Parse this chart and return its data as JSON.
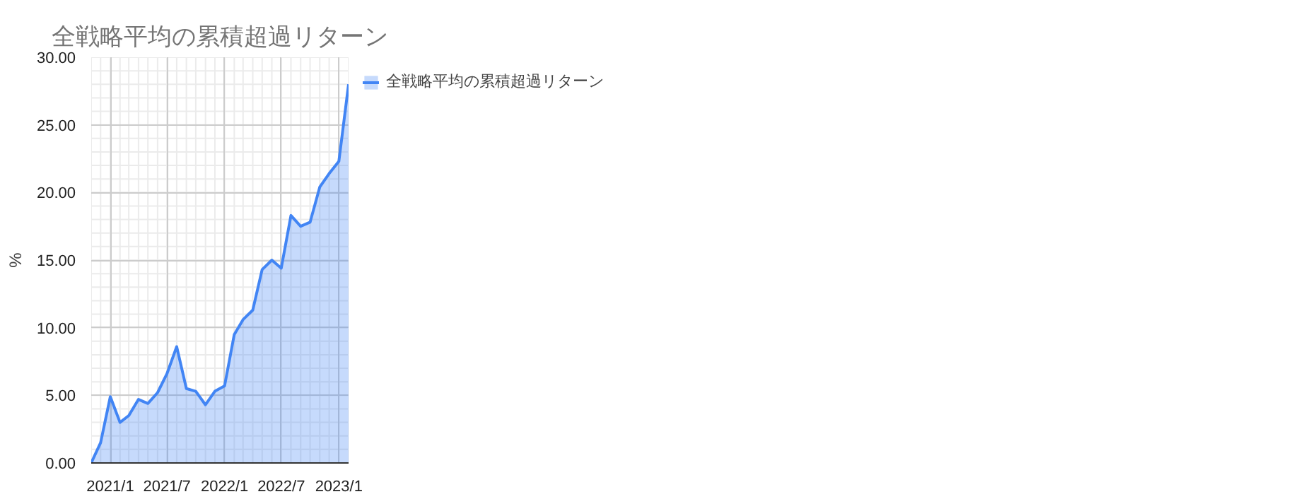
{
  "chart_data": {
    "type": "area",
    "title": "全戦略平均の累積超過リターン",
    "ylabel": "%",
    "x": [
      "2020-11",
      "2020-12",
      "2021-01",
      "2021-02",
      "2021-03",
      "2021-04",
      "2021-05",
      "2021-06",
      "2021-07",
      "2021-08",
      "2021-09",
      "2021-10",
      "2021-11",
      "2021-12",
      "2022-01",
      "2022-02",
      "2022-03",
      "2022-04",
      "2022-05",
      "2022-06",
      "2022-07",
      "2022-08",
      "2022-09",
      "2022-10",
      "2022-11",
      "2022-12",
      "2023-01",
      "2023-02"
    ],
    "series": [
      {
        "name": "全戦略平均の累積超過リターン",
        "color": "#4285f4",
        "values": [
          0,
          1.5,
          4.9,
          3.0,
          3.5,
          4.7,
          4.4,
          5.2,
          6.6,
          8.6,
          5.5,
          5.3,
          4.3,
          5.3,
          5.7,
          9.5,
          10.6,
          11.3,
          14.3,
          15.0,
          14.4,
          18.3,
          17.5,
          17.8,
          20.4,
          21.4,
          22.3,
          28.0
        ]
      }
    ],
    "xlim": [
      "2020-11",
      "2023-02"
    ],
    "xticks": [
      {
        "value": "2021-01",
        "label": "2021/1"
      },
      {
        "value": "2021-07",
        "label": "2021/7"
      },
      {
        "value": "2022-01",
        "label": "2022/1"
      },
      {
        "value": "2022-07",
        "label": "2022/7"
      },
      {
        "value": "2023-01",
        "label": "2023/1"
      }
    ],
    "ylim": [
      0,
      30
    ],
    "yticks": [
      {
        "value": 0,
        "label": "0.00"
      },
      {
        "value": 5,
        "label": "5.00"
      },
      {
        "value": 10,
        "label": "10.00"
      },
      {
        "value": 15,
        "label": "15.00"
      },
      {
        "value": 20,
        "label": "20.00"
      },
      {
        "value": 25,
        "label": "25.00"
      },
      {
        "value": 30,
        "label": "30.00"
      }
    ],
    "grid": true,
    "legend": "top right"
  }
}
